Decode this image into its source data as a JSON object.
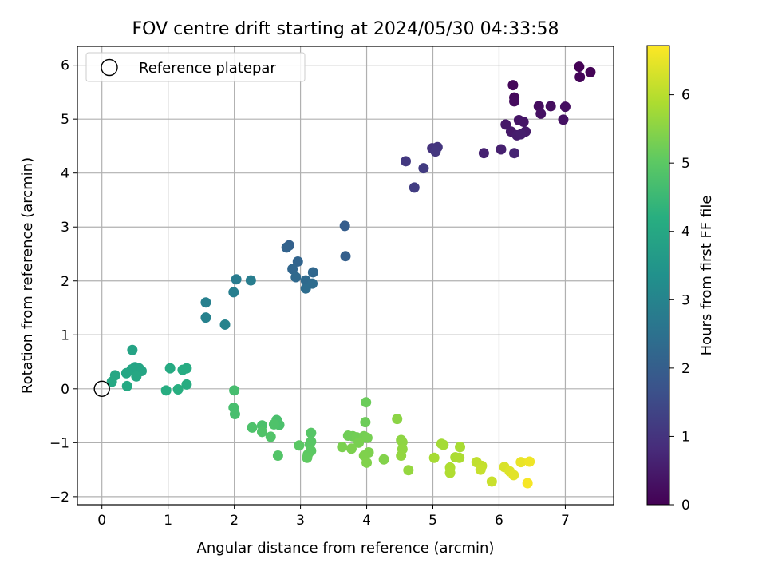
{
  "chart_data": {
    "type": "scatter",
    "title": "FOV centre drift starting at 2024/05/30 04:33:58",
    "xlabel": "Angular distance from reference (arcmin)",
    "ylabel": "Rotation from reference (arcmin)",
    "xlim": [
      -0.37,
      7.73
    ],
    "ylim": [
      -2.15,
      6.35
    ],
    "xticks": [
      0,
      1,
      2,
      3,
      4,
      5,
      6,
      7
    ],
    "yticks": [
      -2,
      -1,
      0,
      1,
      2,
      3,
      4,
      5,
      6
    ],
    "grid": true,
    "legend": {
      "position": "top-left",
      "entries": [
        "Reference platepar"
      ]
    },
    "reference_point": {
      "x": 0.0,
      "y": 0.0,
      "label": "Reference platepar",
      "marker": "hollow-circle"
    },
    "colorbar": {
      "label": "Hours from first FF file",
      "colormap": "viridis",
      "range": [
        0,
        6.72
      ],
      "ticks": [
        0,
        1,
        2,
        3,
        4,
        5,
        6
      ]
    },
    "points": [
      {
        "x": 7.21,
        "y": 5.97,
        "c": 0.02
      },
      {
        "x": 7.38,
        "y": 5.87,
        "c": 0.05
      },
      {
        "x": 7.22,
        "y": 5.78,
        "c": 0.08
      },
      {
        "x": 6.21,
        "y": 5.63,
        "c": 0.12
      },
      {
        "x": 6.23,
        "y": 5.4,
        "c": 0.16
      },
      {
        "x": 6.23,
        "y": 5.33,
        "c": 0.19
      },
      {
        "x": 6.6,
        "y": 5.24,
        "c": 0.22
      },
      {
        "x": 6.78,
        "y": 5.24,
        "c": 0.25
      },
      {
        "x": 7.0,
        "y": 5.23,
        "c": 0.28
      },
      {
        "x": 6.63,
        "y": 5.1,
        "c": 0.31
      },
      {
        "x": 6.97,
        "y": 4.99,
        "c": 0.34
      },
      {
        "x": 6.3,
        "y": 4.98,
        "c": 0.38
      },
      {
        "x": 6.37,
        "y": 4.95,
        "c": 0.41
      },
      {
        "x": 6.1,
        "y": 4.9,
        "c": 0.44
      },
      {
        "x": 6.18,
        "y": 4.77,
        "c": 0.47
      },
      {
        "x": 6.4,
        "y": 4.77,
        "c": 0.5
      },
      {
        "x": 6.27,
        "y": 4.7,
        "c": 0.53
      },
      {
        "x": 6.33,
        "y": 4.72,
        "c": 0.56
      },
      {
        "x": 6.03,
        "y": 4.44,
        "c": 0.6
      },
      {
        "x": 5.77,
        "y": 4.37,
        "c": 0.64
      },
      {
        "x": 6.23,
        "y": 4.37,
        "c": 0.68
      },
      {
        "x": 4.99,
        "y": 4.46,
        "c": 1.0
      },
      {
        "x": 5.07,
        "y": 4.48,
        "c": 1.04
      },
      {
        "x": 5.04,
        "y": 4.4,
        "c": 1.08
      },
      {
        "x": 4.59,
        "y": 4.22,
        "c": 1.12
      },
      {
        "x": 4.86,
        "y": 4.09,
        "c": 1.17
      },
      {
        "x": 4.72,
        "y": 3.73,
        "c": 1.22
      },
      {
        "x": 3.67,
        "y": 3.02,
        "c": 2.0
      },
      {
        "x": 3.68,
        "y": 2.46,
        "c": 2.05
      },
      {
        "x": 2.83,
        "y": 2.66,
        "c": 2.1
      },
      {
        "x": 2.79,
        "y": 2.62,
        "c": 2.14
      },
      {
        "x": 2.96,
        "y": 2.36,
        "c": 2.18
      },
      {
        "x": 2.88,
        "y": 2.22,
        "c": 2.22
      },
      {
        "x": 3.19,
        "y": 2.16,
        "c": 2.26
      },
      {
        "x": 2.93,
        "y": 2.07,
        "c": 2.3
      },
      {
        "x": 3.08,
        "y": 2.01,
        "c": 2.34
      },
      {
        "x": 3.18,
        "y": 1.95,
        "c": 2.38
      },
      {
        "x": 3.08,
        "y": 1.86,
        "c": 2.42
      },
      {
        "x": 2.03,
        "y": 2.03,
        "c": 2.8
      },
      {
        "x": 2.25,
        "y": 2.01,
        "c": 2.84
      },
      {
        "x": 1.99,
        "y": 1.79,
        "c": 2.88
      },
      {
        "x": 1.57,
        "y": 1.6,
        "c": 2.92
      },
      {
        "x": 1.57,
        "y": 1.32,
        "c": 2.96
      },
      {
        "x": 1.86,
        "y": 1.19,
        "c": 3.0
      },
      {
        "x": 0.46,
        "y": 0.72,
        "c": 3.9
      },
      {
        "x": 0.5,
        "y": 0.4,
        "c": 3.92
      },
      {
        "x": 0.56,
        "y": 0.38,
        "c": 3.94
      },
      {
        "x": 0.6,
        "y": 0.33,
        "c": 3.96
      },
      {
        "x": 0.45,
        "y": 0.36,
        "c": 3.98
      },
      {
        "x": 0.37,
        "y": 0.29,
        "c": 4.0
      },
      {
        "x": 0.2,
        "y": 0.25,
        "c": 4.02
      },
      {
        "x": 0.52,
        "y": 0.23,
        "c": 4.04
      },
      {
        "x": 0.15,
        "y": 0.13,
        "c": 4.06
      },
      {
        "x": 0.38,
        "y": 0.05,
        "c": 4.08
      },
      {
        "x": 1.03,
        "y": 0.38,
        "c": 4.12
      },
      {
        "x": 1.28,
        "y": 0.38,
        "c": 4.14
      },
      {
        "x": 1.22,
        "y": 0.35,
        "c": 4.16
      },
      {
        "x": 1.28,
        "y": 0.08,
        "c": 4.18
      },
      {
        "x": 0.97,
        "y": -0.03,
        "c": 4.2
      },
      {
        "x": 1.15,
        "y": -0.01,
        "c": 4.22
      },
      {
        "x": 2.0,
        "y": -0.03,
        "c": 4.7
      },
      {
        "x": 1.99,
        "y": -0.35,
        "c": 4.72
      },
      {
        "x": 2.01,
        "y": -0.47,
        "c": 4.74
      },
      {
        "x": 2.64,
        "y": -0.58,
        "c": 4.76
      },
      {
        "x": 2.68,
        "y": -0.67,
        "c": 4.78
      },
      {
        "x": 2.42,
        "y": -0.68,
        "c": 4.8
      },
      {
        "x": 2.27,
        "y": -0.72,
        "c": 4.82
      },
      {
        "x": 2.6,
        "y": -0.66,
        "c": 4.84
      },
      {
        "x": 2.42,
        "y": -0.8,
        "c": 4.86
      },
      {
        "x": 2.55,
        "y": -0.89,
        "c": 4.88
      },
      {
        "x": 2.66,
        "y": -1.24,
        "c": 4.9
      },
      {
        "x": 3.16,
        "y": -0.82,
        "c": 4.95
      },
      {
        "x": 3.16,
        "y": -0.98,
        "c": 4.97
      },
      {
        "x": 3.14,
        "y": -1.03,
        "c": 4.99
      },
      {
        "x": 2.98,
        "y": -1.05,
        "c": 5.01
      },
      {
        "x": 3.16,
        "y": -1.15,
        "c": 5.03
      },
      {
        "x": 3.11,
        "y": -1.22,
        "c": 5.05
      },
      {
        "x": 3.1,
        "y": -1.28,
        "c": 5.07
      },
      {
        "x": 3.99,
        "y": -0.25,
        "c": 5.2
      },
      {
        "x": 3.98,
        "y": -0.62,
        "c": 5.22
      },
      {
        "x": 3.72,
        "y": -0.87,
        "c": 5.24
      },
      {
        "x": 3.79,
        "y": -0.88,
        "c": 5.26
      },
      {
        "x": 3.85,
        "y": -0.9,
        "c": 5.28
      },
      {
        "x": 3.96,
        "y": -0.88,
        "c": 5.3
      },
      {
        "x": 4.01,
        "y": -0.91,
        "c": 5.32
      },
      {
        "x": 3.88,
        "y": -1.0,
        "c": 5.34
      },
      {
        "x": 3.63,
        "y": -1.08,
        "c": 5.36
      },
      {
        "x": 3.77,
        "y": -1.11,
        "c": 5.38
      },
      {
        "x": 4.03,
        "y": -1.18,
        "c": 5.4
      },
      {
        "x": 3.96,
        "y": -1.24,
        "c": 5.42
      },
      {
        "x": 4.0,
        "y": -1.37,
        "c": 5.44
      },
      {
        "x": 4.26,
        "y": -1.31,
        "c": 5.46
      },
      {
        "x": 4.46,
        "y": -0.56,
        "c": 5.55
      },
      {
        "x": 4.52,
        "y": -0.95,
        "c": 5.57
      },
      {
        "x": 4.54,
        "y": -0.99,
        "c": 5.59
      },
      {
        "x": 4.54,
        "y": -1.12,
        "c": 5.61
      },
      {
        "x": 4.52,
        "y": -1.24,
        "c": 5.63
      },
      {
        "x": 4.63,
        "y": -1.51,
        "c": 5.65
      },
      {
        "x": 5.13,
        "y": -1.02,
        "c": 5.8
      },
      {
        "x": 5.16,
        "y": -1.04,
        "c": 5.82
      },
      {
        "x": 5.02,
        "y": -1.28,
        "c": 5.84
      },
      {
        "x": 5.41,
        "y": -1.08,
        "c": 5.86
      },
      {
        "x": 5.34,
        "y": -1.27,
        "c": 5.88
      },
      {
        "x": 5.4,
        "y": -1.28,
        "c": 5.9
      },
      {
        "x": 5.26,
        "y": -1.46,
        "c": 5.92
      },
      {
        "x": 5.26,
        "y": -1.56,
        "c": 5.94
      },
      {
        "x": 5.66,
        "y": -1.36,
        "c": 6.1
      },
      {
        "x": 5.74,
        "y": -1.43,
        "c": 6.13
      },
      {
        "x": 5.72,
        "y": -1.5,
        "c": 6.16
      },
      {
        "x": 5.89,
        "y": -1.72,
        "c": 6.19
      },
      {
        "x": 6.08,
        "y": -1.45,
        "c": 6.35
      },
      {
        "x": 6.16,
        "y": -1.53,
        "c": 6.4
      },
      {
        "x": 6.22,
        "y": -1.6,
        "c": 6.45
      },
      {
        "x": 6.33,
        "y": -1.36,
        "c": 6.52
      },
      {
        "x": 6.46,
        "y": -1.35,
        "c": 6.58
      },
      {
        "x": 6.43,
        "y": -1.75,
        "c": 6.65
      }
    ]
  }
}
